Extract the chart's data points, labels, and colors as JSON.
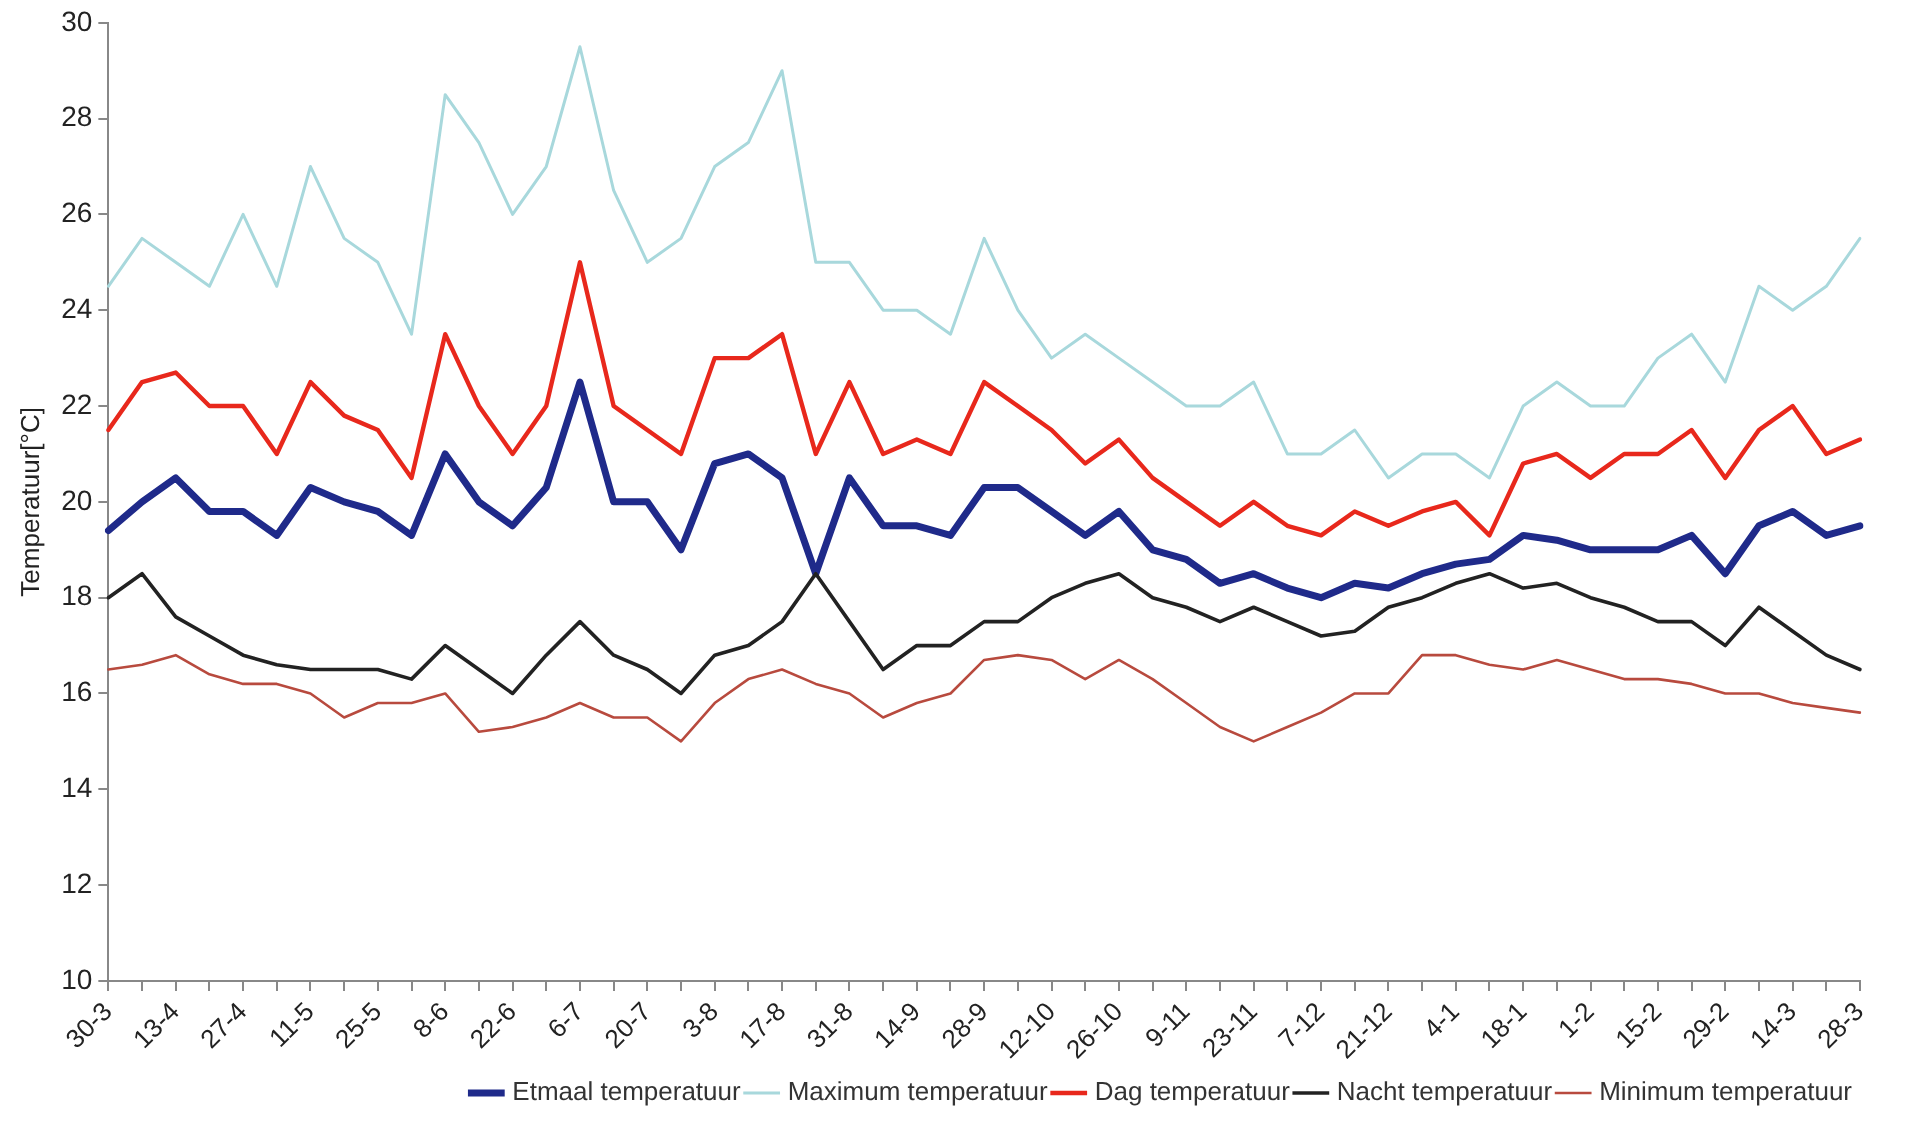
{
  "chart_data": {
    "type": "line",
    "ylabel": "Temperatuur[°C]",
    "categories": [
      "30-3",
      null,
      "13-4",
      null,
      "27-4",
      null,
      "11-5",
      null,
      "25-5",
      null,
      "8-6",
      null,
      "22-6",
      null,
      "6-7",
      null,
      "20-7",
      null,
      "3-8",
      null,
      "17-8",
      null,
      "31-8",
      null,
      "14-9",
      null,
      "28-9",
      null,
      "12-10",
      null,
      "26-10",
      null,
      "9-11",
      null,
      "23-11",
      null,
      "7-12",
      null,
      "21-12",
      null,
      "4-1",
      null,
      "18-1",
      null,
      "1-2",
      null,
      "15-2",
      null,
      "29-2",
      null,
      "14-3",
      null,
      "28-3"
    ],
    "ylim": [
      10,
      30
    ],
    "yticks": [
      10,
      12,
      14,
      16,
      18,
      20,
      22,
      24,
      26,
      28,
      30
    ],
    "grid": false,
    "legend": "bottom",
    "marker": "none",
    "line_style": "solid",
    "series": [
      {
        "name": "Etmaal temperatuur",
        "color": "#1f2a8a",
        "values": [
          19.4,
          20.0,
          20.5,
          19.8,
          19.8,
          19.3,
          20.3,
          20.0,
          19.8,
          19.3,
          21.0,
          20.0,
          19.5,
          20.3,
          22.5,
          20.0,
          20.0,
          19.0,
          20.8,
          21.0,
          20.5,
          18.5,
          20.5,
          19.5,
          19.5,
          19.3,
          20.3,
          20.3,
          19.8,
          19.3,
          19.8,
          19.0,
          18.8,
          18.3,
          18.5,
          18.2,
          18.0,
          18.3,
          18.2,
          18.5,
          18.7,
          18.8,
          19.3,
          19.2,
          19.0,
          19.0,
          19.0,
          19.3,
          18.5,
          19.5,
          19.8,
          19.3,
          19.5
        ]
      },
      {
        "name": "Maximum temperatuur",
        "color": "#a8d8dc",
        "values": [
          24.5,
          25.5,
          25.0,
          24.5,
          26.0,
          24.5,
          27.0,
          25.5,
          25.0,
          23.5,
          28.5,
          27.5,
          26.0,
          27.0,
          29.5,
          26.5,
          25.0,
          25.5,
          27.0,
          27.5,
          29.0,
          25.0,
          25.0,
          24.0,
          24.0,
          23.5,
          25.5,
          24.0,
          23.0,
          23.5,
          23.0,
          22.5,
          22.0,
          22.0,
          22.5,
          21.0,
          21.0,
          21.5,
          20.5,
          21.0,
          21.0,
          20.5,
          22.0,
          22.5,
          22.0,
          22.0,
          23.0,
          23.5,
          22.5,
          24.5,
          24.0,
          24.5,
          25.5
        ]
      },
      {
        "name": "Dag temperatuur",
        "color": "#e8281c",
        "values": [
          21.5,
          22.5,
          22.7,
          22.0,
          22.0,
          21.0,
          22.5,
          21.8,
          21.5,
          20.5,
          23.5,
          22.0,
          21.0,
          22.0,
          25.0,
          22.0,
          21.5,
          21.0,
          23.0,
          23.0,
          23.5,
          21.0,
          22.5,
          21.0,
          21.3,
          21.0,
          22.5,
          22.0,
          21.5,
          20.8,
          21.3,
          20.5,
          20.0,
          19.5,
          20.0,
          19.5,
          19.3,
          19.8,
          19.5,
          19.8,
          20.0,
          19.3,
          20.8,
          21.0,
          20.5,
          21.0,
          21.0,
          21.5,
          20.5,
          21.5,
          22.0,
          21.0,
          21.3
        ]
      },
      {
        "name": "Nacht temperatuur",
        "color": "#222222",
        "values": [
          18.0,
          18.5,
          17.6,
          17.2,
          16.8,
          16.6,
          16.5,
          16.5,
          16.5,
          16.3,
          17.0,
          16.5,
          16.0,
          16.8,
          17.5,
          16.8,
          16.5,
          16.0,
          16.8,
          17.0,
          17.5,
          18.5,
          17.5,
          16.5,
          17.0,
          17.0,
          17.5,
          17.5,
          18.0,
          18.3,
          18.5,
          18.0,
          17.8,
          17.5,
          17.8,
          17.5,
          17.2,
          17.3,
          17.8,
          18.0,
          18.3,
          18.5,
          18.2,
          18.3,
          18.0,
          17.8,
          17.5,
          17.5,
          17.0,
          17.8,
          17.3,
          16.8,
          16.5
        ]
      },
      {
        "name": "Minimum temperatuur",
        "color": "#b84a3e",
        "values": [
          16.5,
          16.6,
          16.8,
          16.4,
          16.2,
          16.2,
          16.0,
          15.5,
          15.8,
          15.8,
          16.0,
          15.2,
          15.3,
          15.5,
          15.8,
          15.5,
          15.5,
          15.0,
          15.8,
          16.3,
          16.5,
          16.2,
          16.0,
          15.5,
          15.8,
          16.0,
          16.7,
          16.8,
          16.7,
          16.3,
          16.7,
          16.3,
          15.8,
          15.3,
          15.0,
          15.3,
          15.6,
          16.0,
          16.0,
          16.8,
          16.8,
          16.6,
          16.5,
          16.7,
          16.5,
          16.3,
          16.3,
          16.2,
          16.0,
          16.0,
          15.8,
          15.7,
          15.6
        ]
      }
    ]
  }
}
